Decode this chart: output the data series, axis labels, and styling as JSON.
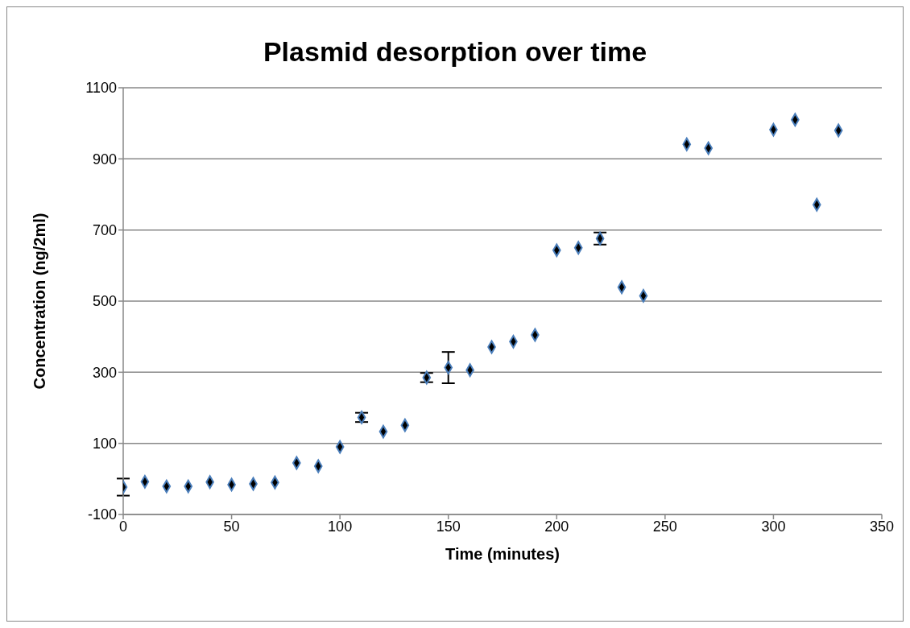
{
  "chart_data": {
    "type": "scatter",
    "title": "Plasmid desorption over time",
    "xlabel": "Time (minutes)",
    "ylabel": "Concentration (ng/2ml)",
    "x": [
      0,
      10,
      20,
      30,
      40,
      50,
      60,
      70,
      80,
      90,
      100,
      110,
      120,
      130,
      140,
      150,
      160,
      170,
      180,
      190,
      200,
      210,
      220,
      230,
      240,
      260,
      270,
      300,
      310,
      320,
      330
    ],
    "values": [
      -23,
      -8,
      -21,
      -21,
      -9,
      -16,
      -14,
      -10,
      45,
      36,
      90,
      173,
      133,
      151,
      285,
      313,
      306,
      371,
      386,
      405,
      643,
      650,
      676,
      539,
      515,
      941,
      930,
      982,
      1010,
      771,
      980
    ],
    "errors": [
      24,
      null,
      null,
      null,
      null,
      null,
      null,
      null,
      null,
      null,
      null,
      13,
      null,
      null,
      13,
      44,
      null,
      null,
      null,
      null,
      null,
      null,
      17,
      null,
      null,
      null,
      null,
      null,
      null,
      null,
      null
    ],
    "color": "#4a7ebb",
    "marker": "diamond",
    "xlim": [
      0,
      350
    ],
    "xticks": [
      0,
      50,
      100,
      150,
      200,
      250,
      300,
      350
    ],
    "ylim": [
      -100,
      1100
    ],
    "yticks": [
      -100,
      100,
      300,
      500,
      700,
      900,
      1100
    ],
    "grid": "y"
  }
}
